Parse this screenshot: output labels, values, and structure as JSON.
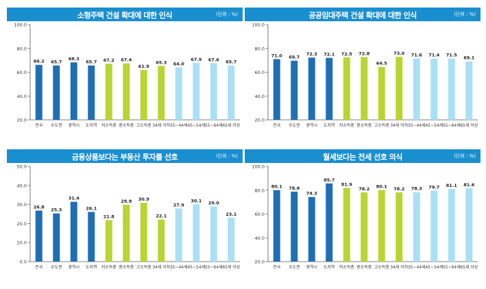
{
  "colors": {
    "header": "#1a8fd0",
    "dark_blue": "#1f6fb5",
    "green": "#b9d532",
    "light_blue": "#a9e0f6",
    "axis": "#555555"
  },
  "categories": [
    "전국",
    "수도권",
    "광역시",
    "도지역",
    "저소득층",
    "중소득층",
    "고소득층",
    "34세 이하",
    "35~44세",
    "45~54세",
    "55~64세",
    "65세 이상"
  ],
  "bar_color_groups": [
    "dark_blue",
    "dark_blue",
    "dark_blue",
    "dark_blue",
    "green",
    "green",
    "green",
    "green",
    "light_blue",
    "light_blue",
    "light_blue",
    "light_blue"
  ],
  "chart_data": [
    {
      "type": "bar",
      "title": "소형주택 건설 확대에 대한 인식",
      "unit": "(단위 : %)",
      "ylim": [
        20,
        100
      ],
      "yticks": [
        "20.0",
        "40.0",
        "60.0",
        "80.0",
        "100.0"
      ],
      "ytick_values": [
        20,
        40,
        60,
        80,
        100
      ],
      "values": [
        66.2,
        65.7,
        68.3,
        65.7,
        67.2,
        67.4,
        61.9,
        65.3,
        64.0,
        67.9,
        67.6,
        65.7
      ]
    },
    {
      "type": "bar",
      "title": "공공임대주택 건설 확대에 대한 인식",
      "unit": "(단위 : %)",
      "ylim": [
        20,
        100
      ],
      "yticks": [
        "20.0",
        "40.0",
        "60.0",
        "80.0",
        "100.0"
      ],
      "ytick_values": [
        20,
        40,
        60,
        80,
        100
      ],
      "values": [
        71.0,
        69.7,
        72.3,
        72.1,
        72.5,
        72.8,
        64.5,
        73.0,
        71.6,
        71.4,
        71.5,
        69.1
      ]
    },
    {
      "type": "bar",
      "title": "금융상품보다는 부동산 투자를 선호",
      "unit": "(단위 : %)",
      "ylim": [
        0,
        50
      ],
      "yticks": [
        "0.0",
        "10.0",
        "20.0",
        "30.0",
        "40.0",
        "50.0"
      ],
      "ytick_values": [
        0,
        10,
        20,
        30,
        40,
        50
      ],
      "values": [
        26.8,
        25.3,
        31.4,
        26.1,
        21.8,
        29.9,
        30.9,
        22.1,
        27.9,
        30.1,
        29.0,
        23.1
      ]
    },
    {
      "type": "bar",
      "title": "월세보다는 전세 선호 의식",
      "unit": "(단위 : %)",
      "ylim": [
        20,
        100
      ],
      "yticks": [
        "20.0",
        "40.0",
        "60.0",
        "80.0",
        "100.0"
      ],
      "ytick_values": [
        20,
        40,
        60,
        80,
        100
      ],
      "values": [
        80.1,
        78.8,
        74.3,
        85.7,
        81.9,
        78.2,
        80.1,
        78.2,
        78.3,
        79.7,
        81.1,
        81.6
      ]
    }
  ]
}
